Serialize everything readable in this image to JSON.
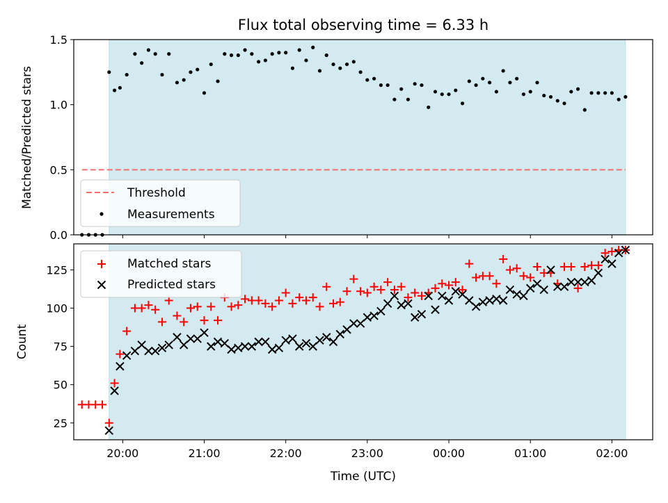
{
  "chart_data": [
    {
      "type": "scatter",
      "title": "Flux total observing time = 6.33 h",
      "xlabel": "",
      "ylabel": "Matched/Predicted stars",
      "xlim": [
        "2023-01-01T19:24",
        "2023-01-02T02:30"
      ],
      "ylim": [
        0,
        1.5
      ],
      "yticks": [
        0.0,
        0.5,
        1.0,
        1.5
      ],
      "ytick_labels": [
        "0.0",
        "0.5",
        "1.0",
        "1.5"
      ],
      "shaded_span": [
        "2023-01-01T19:50",
        "2023-01-02T02:10"
      ],
      "shade_color": "#d3eaf0",
      "threshold": {
        "name": "Threshold",
        "value": 0.5,
        "color": "#f07070",
        "style": "dashed"
      },
      "legend": [
        "Threshold",
        "Measurements"
      ],
      "legend_loc": "lower-left",
      "series": [
        {
          "name": "Measurements",
          "color": "#000000",
          "marker": "dot",
          "x": [
            "2023-01-01T19:30",
            "2023-01-01T19:35",
            "2023-01-01T19:40",
            "2023-01-01T19:45",
            "2023-01-01T19:50",
            "2023-01-01T19:54",
            "2023-01-01T19:58",
            "2023-01-01T20:03",
            "2023-01-01T20:09",
            "2023-01-01T20:14",
            "2023-01-01T20:19",
            "2023-01-01T20:24",
            "2023-01-01T20:29",
            "2023-01-01T20:34",
            "2023-01-01T20:40",
            "2023-01-01T20:45",
            "2023-01-01T20:50",
            "2023-01-01T20:55",
            "2023-01-01T21:00",
            "2023-01-01T21:05",
            "2023-01-01T21:10",
            "2023-01-01T21:15",
            "2023-01-01T21:20",
            "2023-01-01T21:25",
            "2023-01-01T21:30",
            "2023-01-01T21:35",
            "2023-01-01T21:40",
            "2023-01-01T21:45",
            "2023-01-01T21:50",
            "2023-01-01T21:55",
            "2023-01-01T22:00",
            "2023-01-01T22:05",
            "2023-01-01T22:10",
            "2023-01-01T22:15",
            "2023-01-01T22:20",
            "2023-01-01T22:25",
            "2023-01-01T22:30",
            "2023-01-01T22:35",
            "2023-01-01T22:40",
            "2023-01-01T22:45",
            "2023-01-01T22:50",
            "2023-01-01T22:55",
            "2023-01-01T23:00",
            "2023-01-01T23:05",
            "2023-01-01T23:10",
            "2023-01-01T23:15",
            "2023-01-01T23:20",
            "2023-01-01T23:25",
            "2023-01-01T23:30",
            "2023-01-01T23:35",
            "2023-01-01T23:40",
            "2023-01-01T23:45",
            "2023-01-01T23:50",
            "2023-01-01T23:55",
            "2023-01-02T00:00",
            "2023-01-02T00:05",
            "2023-01-02T00:10",
            "2023-01-02T00:15",
            "2023-01-02T00:20",
            "2023-01-02T00:25",
            "2023-01-02T00:30",
            "2023-01-02T00:35",
            "2023-01-02T00:40",
            "2023-01-02T00:45",
            "2023-01-02T00:50",
            "2023-01-02T00:55",
            "2023-01-02T01:00",
            "2023-01-02T01:05",
            "2023-01-02T01:10",
            "2023-01-02T01:15",
            "2023-01-02T01:20",
            "2023-01-02T01:25",
            "2023-01-02T01:30",
            "2023-01-02T01:35",
            "2023-01-02T01:40",
            "2023-01-02T01:45",
            "2023-01-02T01:50",
            "2023-01-02T01:55",
            "2023-01-02T02:00",
            "2023-01-02T02:05",
            "2023-01-02T02:10"
          ],
          "y": [
            0.0,
            0.0,
            0.0,
            0.0,
            1.25,
            1.11,
            1.13,
            1.23,
            1.39,
            1.32,
            1.42,
            1.39,
            1.23,
            1.39,
            1.17,
            1.19,
            1.25,
            1.27,
            1.09,
            1.31,
            1.18,
            1.39,
            1.38,
            1.38,
            1.42,
            1.39,
            1.33,
            1.34,
            1.39,
            1.4,
            1.4,
            1.28,
            1.42,
            1.34,
            1.44,
            1.26,
            1.38,
            1.31,
            1.28,
            1.31,
            1.33,
            1.25,
            1.19,
            1.2,
            1.15,
            1.15,
            1.04,
            1.12,
            1.04,
            1.16,
            1.15,
            0.98,
            1.1,
            1.08,
            1.08,
            1.11,
            1.01,
            1.18,
            1.15,
            1.2,
            1.17,
            1.1,
            1.26,
            1.17,
            1.2,
            1.08,
            1.1,
            1.17,
            1.07,
            1.06,
            1.03,
            1.01,
            1.1,
            1.12,
            0.96,
            1.09,
            1.09,
            1.09,
            1.09,
            1.04,
            1.06
          ]
        }
      ]
    },
    {
      "type": "scatter",
      "title": "",
      "xlabel": "Time (UTC)",
      "ylabel": "Count",
      "xlim": [
        "2023-01-01T19:24",
        "2023-01-02T02:30"
      ],
      "ylim": [
        14,
        142
      ],
      "yticks": [
        25,
        50,
        75,
        100,
        125
      ],
      "ytick_labels": [
        "25",
        "50",
        "75",
        "100",
        "125"
      ],
      "xticks": [
        "2023-01-01T20:00",
        "2023-01-01T21:00",
        "2023-01-01T22:00",
        "2023-01-01T23:00",
        "2023-01-02T00:00",
        "2023-01-02T01:00",
        "2023-01-02T02:00"
      ],
      "xtick_labels": [
        "20:00",
        "21:00",
        "22:00",
        "23:00",
        "00:00",
        "01:00",
        "02:00"
      ],
      "shaded_span": [
        "2023-01-01T19:50",
        "2023-01-02T02:10"
      ],
      "shade_color": "#d3eaf0",
      "legend": [
        "Matched stars",
        "Predicted stars"
      ],
      "legend_loc": "upper-left",
      "series": [
        {
          "name": "Matched stars",
          "color": "#ff0000",
          "marker": "plus",
          "x": [
            "2023-01-01T19:30",
            "2023-01-01T19:35",
            "2023-01-01T19:40",
            "2023-01-01T19:45",
            "2023-01-01T19:50",
            "2023-01-01T19:54",
            "2023-01-01T19:58",
            "2023-01-01T20:03",
            "2023-01-01T20:09",
            "2023-01-01T20:14",
            "2023-01-01T20:19",
            "2023-01-01T20:24",
            "2023-01-01T20:29",
            "2023-01-01T20:34",
            "2023-01-01T20:40",
            "2023-01-01T20:45",
            "2023-01-01T20:50",
            "2023-01-01T20:55",
            "2023-01-01T21:00",
            "2023-01-01T21:05",
            "2023-01-01T21:10",
            "2023-01-01T21:15",
            "2023-01-01T21:20",
            "2023-01-01T21:25",
            "2023-01-01T21:30",
            "2023-01-01T21:35",
            "2023-01-01T21:40",
            "2023-01-01T21:45",
            "2023-01-01T21:50",
            "2023-01-01T21:55",
            "2023-01-01T22:00",
            "2023-01-01T22:05",
            "2023-01-01T22:10",
            "2023-01-01T22:15",
            "2023-01-01T22:20",
            "2023-01-01T22:25",
            "2023-01-01T22:30",
            "2023-01-01T22:35",
            "2023-01-01T22:40",
            "2023-01-01T22:45",
            "2023-01-01T22:50",
            "2023-01-01T22:55",
            "2023-01-01T23:00",
            "2023-01-01T23:05",
            "2023-01-01T23:10",
            "2023-01-01T23:15",
            "2023-01-01T23:20",
            "2023-01-01T23:25",
            "2023-01-01T23:30",
            "2023-01-01T23:35",
            "2023-01-01T23:40",
            "2023-01-01T23:45",
            "2023-01-01T23:50",
            "2023-01-01T23:55",
            "2023-01-02T00:00",
            "2023-01-02T00:05",
            "2023-01-02T00:10",
            "2023-01-02T00:15",
            "2023-01-02T00:20",
            "2023-01-02T00:25",
            "2023-01-02T00:30",
            "2023-01-02T00:35",
            "2023-01-02T00:40",
            "2023-01-02T00:45",
            "2023-01-02T00:50",
            "2023-01-02T00:55",
            "2023-01-02T01:00",
            "2023-01-02T01:05",
            "2023-01-02T01:10",
            "2023-01-02T01:15",
            "2023-01-02T01:20",
            "2023-01-02T01:25",
            "2023-01-02T01:30",
            "2023-01-02T01:35",
            "2023-01-02T01:40",
            "2023-01-02T01:45",
            "2023-01-02T01:50",
            "2023-01-02T01:55",
            "2023-01-02T02:00",
            "2023-01-02T02:05",
            "2023-01-02T02:10"
          ],
          "y": [
            37,
            37,
            37,
            37,
            25,
            51,
            70,
            85,
            100,
            100,
            102,
            99,
            91,
            105,
            95,
            91,
            100,
            101,
            92,
            101,
            92,
            107,
            101,
            102,
            106,
            105,
            105,
            103,
            101,
            105,
            110,
            103,
            107,
            105,
            107,
            101,
            114,
            103,
            104,
            111,
            119,
            111,
            110,
            114,
            112,
            117,
            112,
            114,
            107,
            110,
            108,
            110,
            113,
            116,
            115,
            117,
            112,
            129,
            120,
            121,
            121,
            116,
            132,
            125,
            126,
            121,
            120,
            127,
            123,
            123,
            116,
            127,
            127,
            113,
            127,
            128,
            128,
            136,
            137,
            138,
            138
          ]
        },
        {
          "name": "Predicted stars",
          "color": "#000000",
          "marker": "x",
          "x": [
            "2023-01-01T19:50",
            "2023-01-01T19:54",
            "2023-01-01T19:58",
            "2023-01-01T20:03",
            "2023-01-01T20:09",
            "2023-01-01T20:14",
            "2023-01-01T20:19",
            "2023-01-01T20:24",
            "2023-01-01T20:29",
            "2023-01-01T20:34",
            "2023-01-01T20:40",
            "2023-01-01T20:45",
            "2023-01-01T20:50",
            "2023-01-01T20:55",
            "2023-01-01T21:00",
            "2023-01-01T21:05",
            "2023-01-01T21:10",
            "2023-01-01T21:15",
            "2023-01-01T21:20",
            "2023-01-01T21:25",
            "2023-01-01T21:30",
            "2023-01-01T21:35",
            "2023-01-01T21:40",
            "2023-01-01T21:45",
            "2023-01-01T21:50",
            "2023-01-01T21:55",
            "2023-01-01T22:00",
            "2023-01-01T22:05",
            "2023-01-01T22:10",
            "2023-01-01T22:15",
            "2023-01-01T22:20",
            "2023-01-01T22:25",
            "2023-01-01T22:30",
            "2023-01-01T22:35",
            "2023-01-01T22:40",
            "2023-01-01T22:45",
            "2023-01-01T22:50",
            "2023-01-01T22:55",
            "2023-01-01T23:00",
            "2023-01-01T23:05",
            "2023-01-01T23:10",
            "2023-01-01T23:15",
            "2023-01-01T23:20",
            "2023-01-01T23:25",
            "2023-01-01T23:30",
            "2023-01-01T23:35",
            "2023-01-01T23:40",
            "2023-01-01T23:45",
            "2023-01-01T23:50",
            "2023-01-01T23:55",
            "2023-01-02T00:00",
            "2023-01-02T00:05",
            "2023-01-02T00:10",
            "2023-01-02T00:15",
            "2023-01-02T00:20",
            "2023-01-02T00:25",
            "2023-01-02T00:30",
            "2023-01-02T00:35",
            "2023-01-02T00:40",
            "2023-01-02T00:45",
            "2023-01-02T00:50",
            "2023-01-02T00:55",
            "2023-01-02T01:00",
            "2023-01-02T01:05",
            "2023-01-02T01:10",
            "2023-01-02T01:15",
            "2023-01-02T01:20",
            "2023-01-02T01:25",
            "2023-01-02T01:30",
            "2023-01-02T01:35",
            "2023-01-02T01:40",
            "2023-01-02T01:45",
            "2023-01-02T01:50",
            "2023-01-02T01:55",
            "2023-01-02T02:00",
            "2023-01-02T02:05",
            "2023-01-02T02:10"
          ],
          "y": [
            20,
            46,
            62,
            69,
            72,
            76,
            72,
            72,
            74,
            76,
            81,
            76,
            80,
            80,
            84,
            75,
            78,
            77,
            73,
            74,
            75,
            75,
            78,
            78,
            73,
            74,
            79,
            80,
            75,
            77,
            75,
            79,
            81,
            78,
            83,
            86,
            90,
            90,
            94,
            95,
            98,
            103,
            108,
            102,
            103,
            94,
            96,
            108,
            99,
            108,
            105,
            111,
            109,
            105,
            101,
            104,
            105,
            106,
            105,
            112,
            109,
            108,
            113,
            116,
            112,
            125,
            114,
            114,
            117,
            117,
            117,
            118,
            123,
            132,
            129,
            136,
            138
          ]
        }
      ]
    }
  ]
}
